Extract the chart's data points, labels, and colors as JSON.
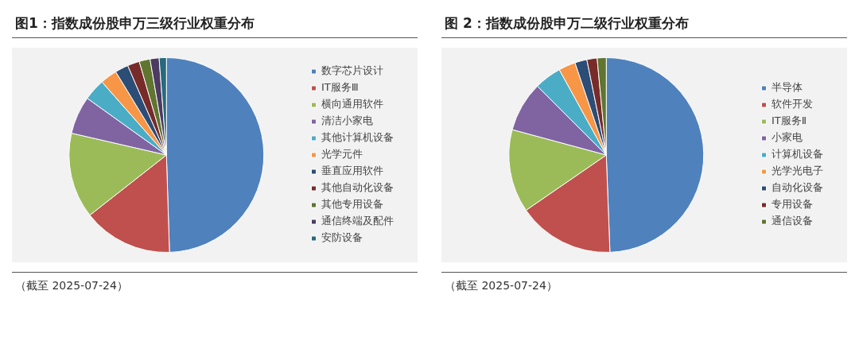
{
  "chart_data": [
    {
      "type": "pie",
      "title": "图1：指数成份股申万三级行业权重分布",
      "categories": [
        "数字芯片设计",
        "IT服务Ⅲ",
        "横向通用软件",
        "清洁小家电",
        "其他计算机设备",
        "光学元件",
        "垂直应用软件",
        "其他自动化设备",
        "其他专用设备",
        "通信终端及配件",
        "安防设备"
      ],
      "values": [
        49.5,
        14.9,
        14.2,
        6.3,
        3.6,
        2.8,
        2.2,
        2.0,
        1.8,
        1.5,
        1.2
      ],
      "colors": [
        "#4f81bd",
        "#c0504d",
        "#9bbb59",
        "#8064a2",
        "#4bacc6",
        "#f79646",
        "#2c4d75",
        "#772c2a",
        "#5f7530",
        "#4d3b62",
        "#276a7c"
      ],
      "legend": "right",
      "annotations": [
        "（截至 2025-07-24）"
      ]
    },
    {
      "type": "pie",
      "title": "图 2：指数成份股申万二级行业权重分布",
      "categories": [
        "半导体",
        "软件开发",
        "IT服务Ⅱ",
        "小家电",
        "计算机设备",
        "光学光电子",
        "自动化设备",
        "专用设备",
        "通信设备"
      ],
      "values": [
        49.4,
        16.0,
        13.8,
        8.3,
        4.5,
        2.8,
        2.0,
        1.7,
        1.5
      ],
      "colors": [
        "#4f81bd",
        "#c0504d",
        "#9bbb59",
        "#8064a2",
        "#4bacc6",
        "#f79646",
        "#2c4d75",
        "#772c2a",
        "#5f7530"
      ],
      "legend": "right",
      "annotations": [
        "（截至 2025-07-24）"
      ]
    }
  ]
}
